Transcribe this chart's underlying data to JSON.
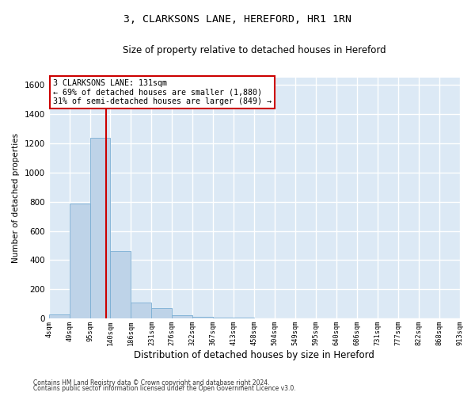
{
  "title": "3, CLARKSONS LANE, HEREFORD, HR1 1RN",
  "subtitle": "Size of property relative to detached houses in Hereford",
  "xlabel": "Distribution of detached houses by size in Hereford",
  "ylabel": "Number of detached properties",
  "bin_labels": [
    "4sqm",
    "49sqm",
    "95sqm",
    "140sqm",
    "186sqm",
    "231sqm",
    "276sqm",
    "322sqm",
    "367sqm",
    "413sqm",
    "458sqm",
    "504sqm",
    "549sqm",
    "595sqm",
    "640sqm",
    "686sqm",
    "731sqm",
    "777sqm",
    "822sqm",
    "868sqm",
    "913sqm"
  ],
  "bar_values": [
    30,
    790,
    1240,
    460,
    110,
    70,
    20,
    10,
    5,
    5,
    0,
    0,
    0,
    0,
    0,
    0,
    0,
    0,
    0,
    0
  ],
  "bar_color": "#bed3e8",
  "bar_edge_color": "#7bafd4",
  "background_color": "#dce9f5",
  "grid_color": "#ffffff",
  "vline_color": "#cc0000",
  "annotation_text": "3 CLARKSONS LANE: 131sqm\n← 69% of detached houses are smaller (1,880)\n31% of semi-detached houses are larger (849) →",
  "annotation_box_color": "#ffffff",
  "annotation_box_edge": "#cc0000",
  "ylim": [
    0,
    1650
  ],
  "yticks": [
    0,
    200,
    400,
    600,
    800,
    1000,
    1200,
    1400,
    1600
  ],
  "fig_facecolor": "#ffffff",
  "footer_line1": "Contains HM Land Registry data © Crown copyright and database right 2024.",
  "footer_line2": "Contains public sector information licensed under the Open Government Licence v3.0."
}
